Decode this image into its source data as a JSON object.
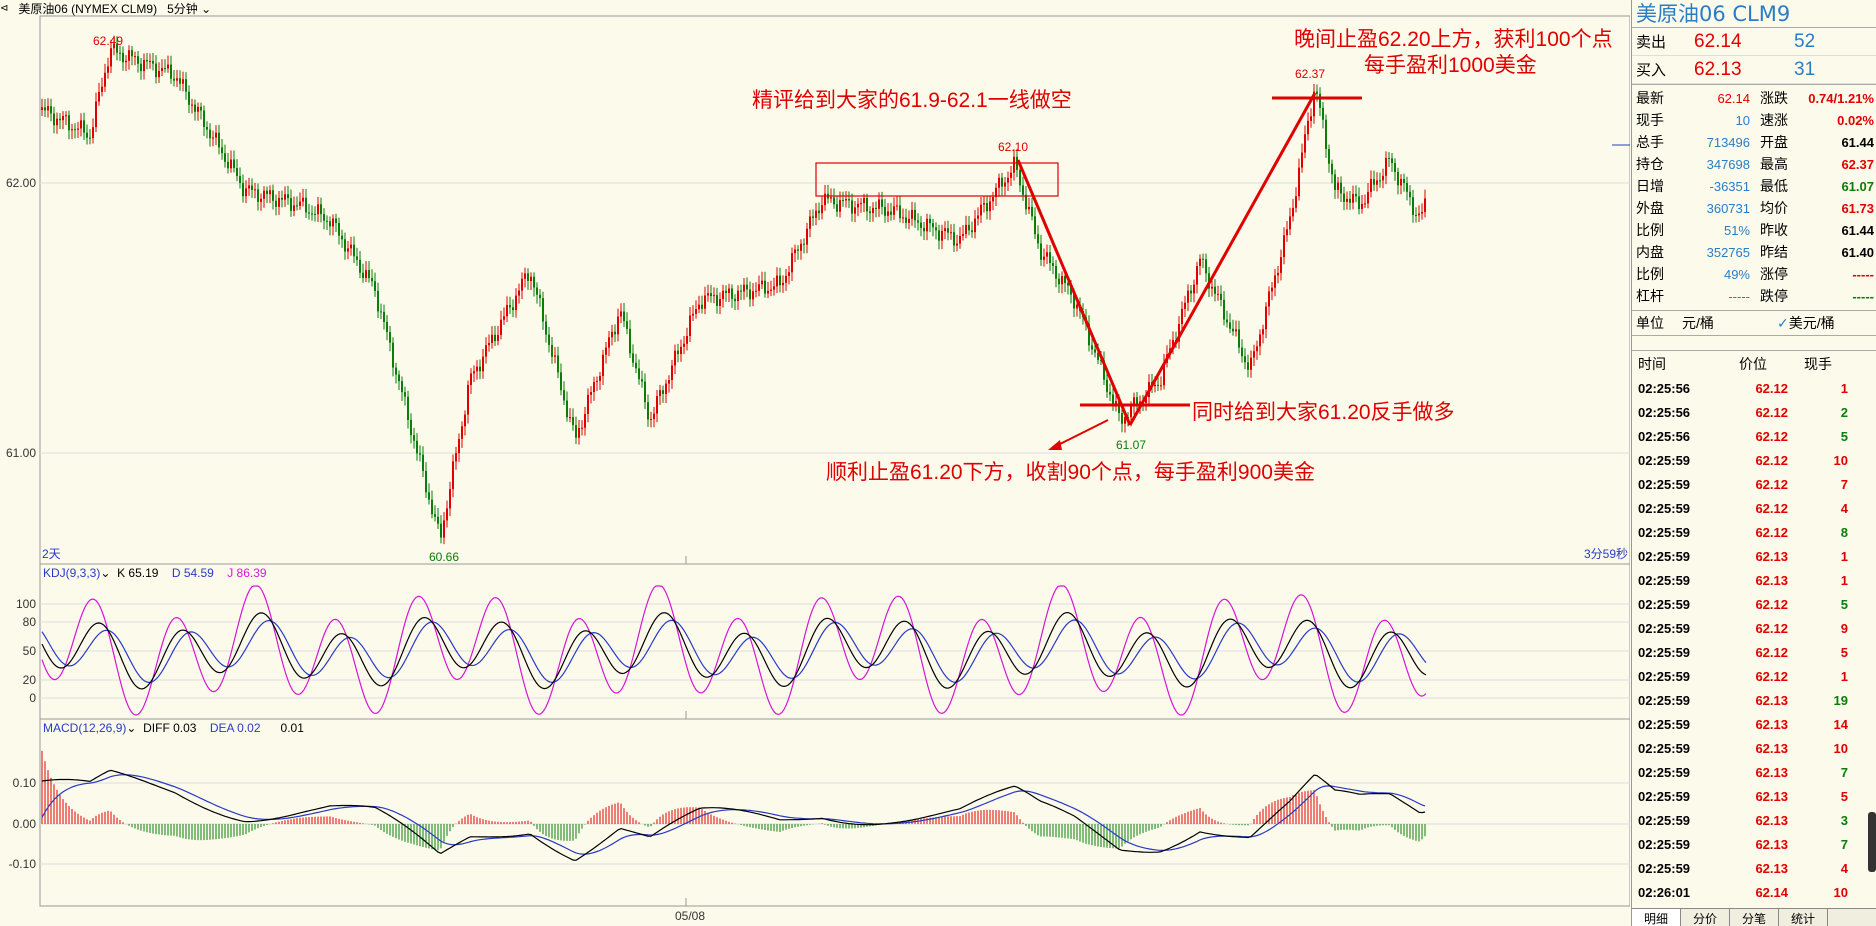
{
  "header": {
    "symbol_label": "美原油06 (NYMEX CLM9)",
    "period_label": "5分钟"
  },
  "main_chart": {
    "price_labels": [
      {
        "value": "62.49"
      },
      {
        "value": "62.10"
      },
      {
        "value": "62.37"
      },
      {
        "value": "61.07"
      },
      {
        "value": "60.66"
      }
    ],
    "y_ticks": [
      "62.00",
      "61.00"
    ],
    "left_corner": "2天",
    "right_corner": "3分59秒",
    "x_tick": "05/08",
    "colors": {
      "up": "#e00000",
      "down": "#0a7d0a",
      "annotation": "#e00000"
    }
  },
  "annotations": {
    "short_call": "精评给到大家的61.9-62.1一线做空",
    "take_profit_1": "顺利止盈61.20下方，收割90个点，每手盈利900美金",
    "reverse_long": "同时给到大家61.20反手做多",
    "take_profit_2_line1": "晚间止盈62.20上方，获利100个点",
    "take_profit_2_line2": "每手盈利1000美金"
  },
  "kdj": {
    "label": "KDJ(9,3,3)",
    "k": "K 65.19",
    "d": "D 54.59",
    "j": "J 86.39",
    "y_ticks": [
      "100",
      "80",
      "50",
      "20",
      "0"
    ]
  },
  "macd": {
    "label": "MACD(12,26,9)",
    "diff": "DIFF 0.03",
    "dea": "DEA 0.02",
    "macd_val": "0.01",
    "y_ticks": [
      "0.10",
      "0.00",
      "-0.10"
    ]
  },
  "side": {
    "title": "美原油06  CLM9",
    "sell": {
      "label": "卖出",
      "price": "62.14",
      "vol": "52"
    },
    "buy": {
      "label": "买入",
      "price": "62.13",
      "vol": "31"
    },
    "stats": [
      {
        "l": "最新",
        "v": "62.14",
        "vc": "#e00000",
        "l2": "涨跌",
        "v2": "0.74/1.21%",
        "v2c": "#e00000"
      },
      {
        "l": "现手",
        "v": "10",
        "vc": "#2a7dc4",
        "l2": "速涨",
        "v2": "0.02%",
        "v2c": "#e00000"
      },
      {
        "l": "总手",
        "v": "713496",
        "vc": "#2a7dc4",
        "l2": "开盘",
        "v2": "61.44",
        "v2c": "#000000"
      },
      {
        "l": "持仓",
        "v": "347698",
        "vc": "#2a7dc4",
        "l2": "最高",
        "v2": "62.37",
        "v2c": "#e00000"
      },
      {
        "l": "日增",
        "v": "-36351",
        "vc": "#2a7dc4",
        "l2": "最低",
        "v2": "61.07",
        "v2c": "#0a7d0a"
      },
      {
        "l": "外盘",
        "v": "360731",
        "vc": "#2a7dc4",
        "l2": "均价",
        "v2": "61.73",
        "v2c": "#e00000"
      },
      {
        "l": "比例",
        "v": "51%",
        "vc": "#2a7dc4",
        "l2": "昨收",
        "v2": "61.44",
        "v2c": "#000000"
      },
      {
        "l": "内盘",
        "v": "352765",
        "vc": "#2a7dc4",
        "l2": "昨结",
        "v2": "61.40",
        "v2c": "#000000"
      },
      {
        "l": "比例",
        "v": "49%",
        "vc": "#2a7dc4",
        "l2": "涨停",
        "v2": "-----",
        "v2c": "#e00000"
      },
      {
        "l": "杠杆",
        "v": "-----",
        "vc": "#2a7dc4",
        "l2": "跌停",
        "v2": "-----",
        "v2c": "#0a7d0a"
      }
    ],
    "unit_label": "单位",
    "unit_option_1": "元/桶",
    "unit_option_2": "美元/桶",
    "trade_headers": {
      "time": "时间",
      "price": "价位",
      "vol": "现手"
    },
    "trades": [
      {
        "t": "02:25:56",
        "p": "62.12",
        "v": "1",
        "vc": "#e00000"
      },
      {
        "t": "02:25:56",
        "p": "62.12",
        "v": "2",
        "vc": "#0a7d0a"
      },
      {
        "t": "02:25:56",
        "p": "62.12",
        "v": "5",
        "vc": "#0a7d0a"
      },
      {
        "t": "02:25:59",
        "p": "62.12",
        "v": "10",
        "vc": "#e00000"
      },
      {
        "t": "02:25:59",
        "p": "62.12",
        "v": "7",
        "vc": "#e00000"
      },
      {
        "t": "02:25:59",
        "p": "62.12",
        "v": "4",
        "vc": "#e00000"
      },
      {
        "t": "02:25:59",
        "p": "62.12",
        "v": "8",
        "vc": "#0a7d0a"
      },
      {
        "t": "02:25:59",
        "p": "62.13",
        "v": "1",
        "vc": "#e00000"
      },
      {
        "t": "02:25:59",
        "p": "62.13",
        "v": "1",
        "vc": "#e00000"
      },
      {
        "t": "02:25:59",
        "p": "62.12",
        "v": "5",
        "vc": "#0a7d0a"
      },
      {
        "t": "02:25:59",
        "p": "62.12",
        "v": "9",
        "vc": "#e00000"
      },
      {
        "t": "02:25:59",
        "p": "62.12",
        "v": "5",
        "vc": "#e00000"
      },
      {
        "t": "02:25:59",
        "p": "62.12",
        "v": "1",
        "vc": "#e00000"
      },
      {
        "t": "02:25:59",
        "p": "62.13",
        "v": "19",
        "vc": "#0a7d0a"
      },
      {
        "t": "02:25:59",
        "p": "62.13",
        "v": "14",
        "vc": "#e00000"
      },
      {
        "t": "02:25:59",
        "p": "62.13",
        "v": "10",
        "vc": "#e00000"
      },
      {
        "t": "02:25:59",
        "p": "62.13",
        "v": "7",
        "vc": "#0a7d0a"
      },
      {
        "t": "02:25:59",
        "p": "62.13",
        "v": "5",
        "vc": "#e00000"
      },
      {
        "t": "02:25:59",
        "p": "62.13",
        "v": "3",
        "vc": "#0a7d0a"
      },
      {
        "t": "02:25:59",
        "p": "62.13",
        "v": "7",
        "vc": "#0a7d0a"
      },
      {
        "t": "02:25:59",
        "p": "62.13",
        "v": "4",
        "vc": "#e00000"
      },
      {
        "t": "02:26:01",
        "p": "62.14",
        "v": "10",
        "vc": "#e00000"
      }
    ],
    "tabs": [
      "明细",
      "分价",
      "分笔",
      "统计"
    ]
  }
}
